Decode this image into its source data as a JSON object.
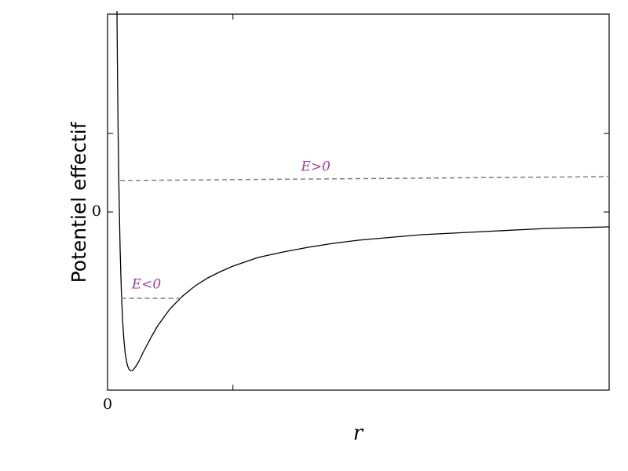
{
  "chart_data": {
    "type": "line",
    "xlabel": "r",
    "ylabel": "Potentiel effectif",
    "xlim": [
      0,
      4
    ],
    "ylim": [
      -2.27,
      2.52
    ],
    "xticks": [
      0,
      {
        "value": 1,
        "label": null
      }
    ],
    "yticks": [
      0,
      {
        "value": 1,
        "label": null
      }
    ],
    "series": [
      {
        "color": "#000000",
        "dash": false,
        "x": [
          0.075,
          0.08,
          0.085,
          0.09,
          0.1,
          0.11,
          0.12,
          0.13,
          0.14,
          0.15,
          0.16,
          0.17,
          0.18,
          0.19,
          0.2,
          0.22,
          0.24,
          0.26,
          0.28,
          0.3,
          0.35,
          0.4,
          0.45,
          0.5,
          0.6,
          0.7,
          0.8,
          0.9,
          1.0,
          1.2,
          1.4,
          1.6,
          1.8,
          2.0,
          2.5,
          3.0,
          3.5,
          4.0
        ],
        "values": [
          2.56,
          1.66,
          0.94,
          0.37,
          -0.46,
          -1.01,
          -1.38,
          -1.62,
          -1.79,
          -1.89,
          -1.96,
          -2.0,
          -2.02,
          -2.02,
          -2.02,
          -1.98,
          -1.93,
          -1.87,
          -1.8,
          -1.74,
          -1.59,
          -1.45,
          -1.34,
          -1.23,
          -1.07,
          -0.94,
          -0.84,
          -0.76,
          -0.69,
          -0.58,
          -0.51,
          -0.45,
          -0.4,
          -0.36,
          -0.29,
          -0.25,
          -0.21,
          -0.19
        ]
      },
      {
        "name": "E>0",
        "color": "#808080",
        "dash": true,
        "x": [
          0.1,
          4.0
        ],
        "values": [
          0.4,
          0.45
        ]
      },
      {
        "name": "E<0",
        "color": "#808080",
        "dash": true,
        "x": [
          0.11,
          0.61
        ],
        "values": [
          -1.1,
          -1.1
        ]
      }
    ],
    "label_color": "#a0409a"
  }
}
